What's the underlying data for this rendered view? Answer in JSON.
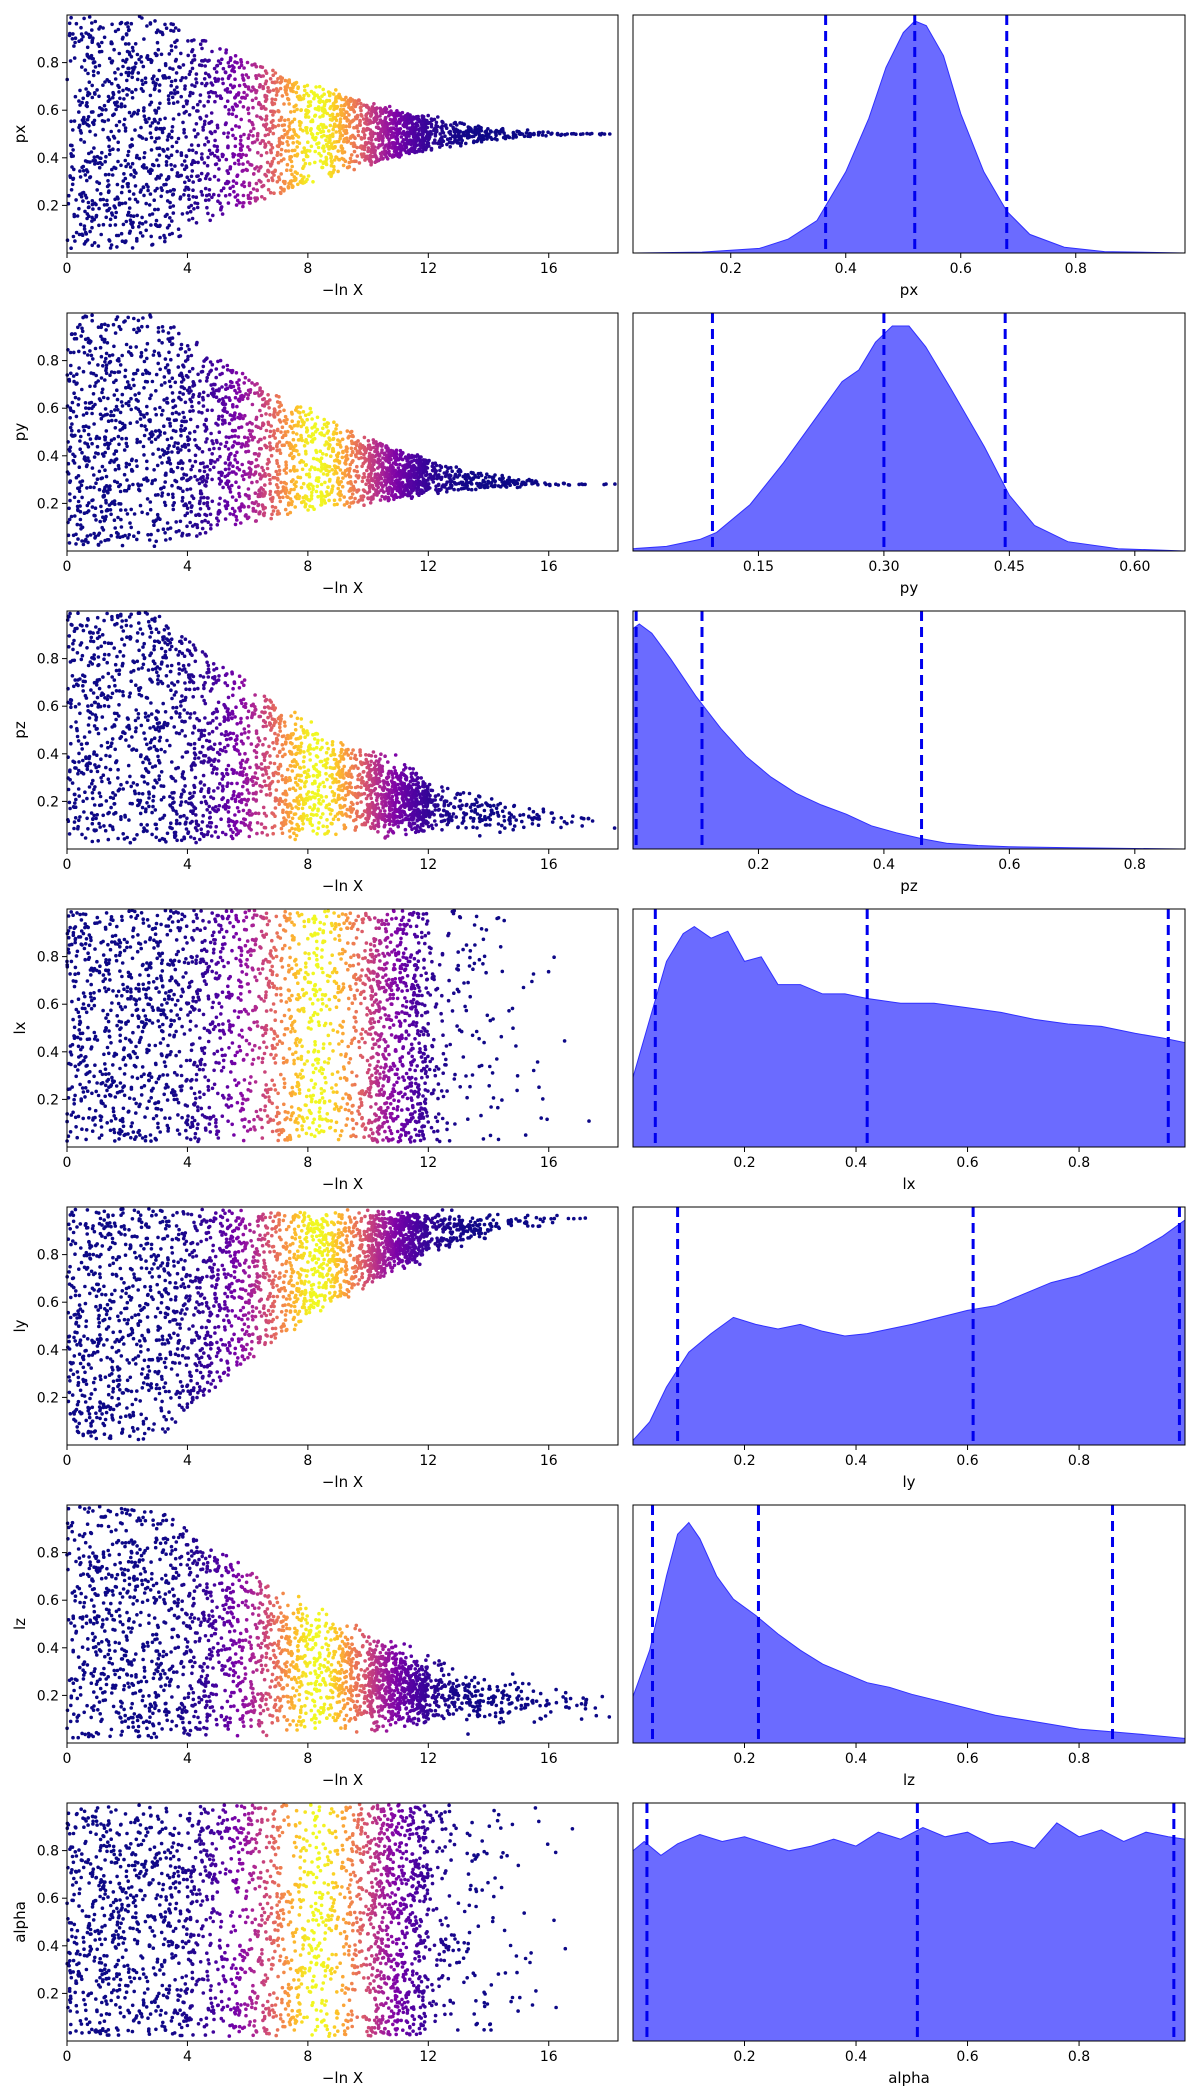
{
  "chart_data": {
    "type": "scatter",
    "layout": "7 rows x 2 columns: left = trace scatter vs -ln X, right = posterior density with dashed quantile lines",
    "rows": [
      {
        "param": "px",
        "trace": {
          "xlabel": "−ln X",
          "ylabel": "px",
          "xlim": [
            0,
            18.3
          ],
          "ylim": [
            0,
            1
          ],
          "xticks": [
            "0",
            "4",
            "8",
            "12",
            "16"
          ],
          "yticks": [
            "0.2",
            "0.4",
            "0.6",
            "0.8"
          ],
          "spread": [
            0.0,
            1.0
          ],
          "converge_to": 0.5,
          "converge_width": 0.05,
          "tail_scale": 2.2
        },
        "posterior": {
          "xlabel": "px",
          "xlim": [
            0.03,
            0.99
          ],
          "xticks": [
            "0.2",
            "0.4",
            "0.6",
            "0.8"
          ],
          "quantiles": [
            0.365,
            0.52,
            0.68
          ],
          "density": [
            [
              0.03,
              0.0
            ],
            [
              0.15,
              0.004
            ],
            [
              0.25,
              0.02
            ],
            [
              0.3,
              0.06
            ],
            [
              0.35,
              0.14
            ],
            [
              0.4,
              0.35
            ],
            [
              0.44,
              0.58
            ],
            [
              0.47,
              0.8
            ],
            [
              0.5,
              0.95
            ],
            [
              0.52,
              1.0
            ],
            [
              0.54,
              0.98
            ],
            [
              0.57,
              0.85
            ],
            [
              0.6,
              0.6
            ],
            [
              0.64,
              0.35
            ],
            [
              0.68,
              0.18
            ],
            [
              0.72,
              0.08
            ],
            [
              0.78,
              0.025
            ],
            [
              0.85,
              0.006
            ],
            [
              0.99,
              0.0
            ]
          ]
        }
      },
      {
        "param": "py",
        "trace": {
          "xlabel": "−ln X",
          "ylabel": "py",
          "xlim": [
            0,
            18.3
          ],
          "ylim": [
            0,
            1
          ],
          "xticks": [
            "0",
            "4",
            "8",
            "12",
            "16"
          ],
          "yticks": [
            "0.2",
            "0.4",
            "0.6",
            "0.8"
          ],
          "spread": [
            0.0,
            1.0
          ],
          "converge_to": 0.28,
          "converge_width": 0.06,
          "tail_scale": 2.0
        },
        "posterior": {
          "xlabel": "py",
          "xlim": [
            0.0,
            0.66
          ],
          "xticks": [
            "0.15",
            "0.30",
            "0.45",
            "0.60"
          ],
          "tick_values": [
            0.15,
            0.3,
            0.45,
            0.6
          ],
          "quantiles": [
            0.095,
            0.3,
            0.445
          ],
          "density": [
            [
              0.0,
              0.01
            ],
            [
              0.04,
              0.02
            ],
            [
              0.08,
              0.05
            ],
            [
              0.1,
              0.08
            ],
            [
              0.14,
              0.2
            ],
            [
              0.18,
              0.38
            ],
            [
              0.22,
              0.58
            ],
            [
              0.25,
              0.73
            ],
            [
              0.27,
              0.78
            ],
            [
              0.29,
              0.9
            ],
            [
              0.31,
              0.97
            ],
            [
              0.33,
              0.97
            ],
            [
              0.35,
              0.88
            ],
            [
              0.38,
              0.7
            ],
            [
              0.42,
              0.45
            ],
            [
              0.45,
              0.24
            ],
            [
              0.48,
              0.11
            ],
            [
              0.52,
              0.04
            ],
            [
              0.58,
              0.01
            ],
            [
              0.66,
              0.0
            ]
          ]
        }
      },
      {
        "param": "pz",
        "trace": {
          "xlabel": "−ln X",
          "ylabel": "pz",
          "xlim": [
            0,
            18.3
          ],
          "ylim": [
            0,
            1
          ],
          "xticks": [
            "0",
            "4",
            "8",
            "12",
            "16"
          ],
          "yticks": [
            "0.2",
            "0.4",
            "0.6",
            "0.8"
          ],
          "spread": [
            0.0,
            1.0
          ],
          "converge_to": 0.12,
          "converge_width": 0.18,
          "tail_scale": 1.8
        },
        "posterior": {
          "xlabel": "pz",
          "xlim": [
            0.0,
            0.88
          ],
          "xticks": [
            "0.2",
            "0.4",
            "0.6",
            "0.8"
          ],
          "quantiles": [
            0.005,
            0.11,
            0.46
          ],
          "density": [
            [
              0.0,
              0.95
            ],
            [
              0.01,
              0.97
            ],
            [
              0.03,
              0.93
            ],
            [
              0.06,
              0.82
            ],
            [
              0.1,
              0.66
            ],
            [
              0.14,
              0.52
            ],
            [
              0.18,
              0.4
            ],
            [
              0.22,
              0.31
            ],
            [
              0.26,
              0.24
            ],
            [
              0.3,
              0.19
            ],
            [
              0.34,
              0.15
            ],
            [
              0.38,
              0.1
            ],
            [
              0.42,
              0.07
            ],
            [
              0.46,
              0.045
            ],
            [
              0.5,
              0.025
            ],
            [
              0.55,
              0.015
            ],
            [
              0.6,
              0.01
            ],
            [
              0.7,
              0.005
            ],
            [
              0.88,
              0.0
            ]
          ]
        }
      },
      {
        "param": "lx",
        "trace": {
          "xlabel": "−ln X",
          "ylabel": "lx",
          "xlim": [
            0,
            18.3
          ],
          "ylim": [
            0,
            1
          ],
          "xticks": [
            "0",
            "4",
            "8",
            "12",
            "16"
          ],
          "yticks": [
            "0.2",
            "0.4",
            "0.6",
            "0.8"
          ],
          "spread": [
            0.0,
            1.0
          ],
          "converge_to": null,
          "converge_width": 1,
          "tail_scale": 1.5
        },
        "posterior": {
          "xlabel": "lx",
          "xlim": [
            0.0,
            0.99
          ],
          "xticks": [
            "0.2",
            "0.4",
            "0.6",
            "0.8"
          ],
          "quantiles": [
            0.04,
            0.42,
            0.96
          ],
          "density": [
            [
              0.0,
              0.3
            ],
            [
              0.03,
              0.55
            ],
            [
              0.06,
              0.8
            ],
            [
              0.09,
              0.92
            ],
            [
              0.11,
              0.95
            ],
            [
              0.14,
              0.9
            ],
            [
              0.17,
              0.93
            ],
            [
              0.2,
              0.8
            ],
            [
              0.23,
              0.82
            ],
            [
              0.26,
              0.7
            ],
            [
              0.3,
              0.7
            ],
            [
              0.34,
              0.66
            ],
            [
              0.38,
              0.66
            ],
            [
              0.42,
              0.64
            ],
            [
              0.48,
              0.62
            ],
            [
              0.54,
              0.62
            ],
            [
              0.6,
              0.6
            ],
            [
              0.66,
              0.58
            ],
            [
              0.72,
              0.55
            ],
            [
              0.78,
              0.53
            ],
            [
              0.84,
              0.52
            ],
            [
              0.9,
              0.49
            ],
            [
              0.95,
              0.47
            ],
            [
              0.99,
              0.45
            ]
          ]
        }
      },
      {
        "param": "ly",
        "trace": {
          "xlabel": "−ln X",
          "ylabel": "ly",
          "xlim": [
            0,
            18.3
          ],
          "ylim": [
            0,
            1
          ],
          "xticks": [
            "0",
            "4",
            "8",
            "12",
            "16"
          ],
          "yticks": [
            "0.2",
            "0.4",
            "0.6",
            "0.8"
          ],
          "spread": [
            0.0,
            1.0
          ],
          "converge_to": 0.95,
          "converge_width": 0.12,
          "tail_scale": 1.6
        },
        "posterior": {
          "xlabel": "ly",
          "xlim": [
            0.0,
            0.99
          ],
          "xticks": [
            "0.2",
            "0.4",
            "0.6",
            "0.8"
          ],
          "quantiles": [
            0.08,
            0.61,
            0.98
          ],
          "density": [
            [
              0.0,
              0.02
            ],
            [
              0.03,
              0.1
            ],
            [
              0.06,
              0.25
            ],
            [
              0.1,
              0.4
            ],
            [
              0.14,
              0.48
            ],
            [
              0.18,
              0.55
            ],
            [
              0.22,
              0.52
            ],
            [
              0.26,
              0.5
            ],
            [
              0.3,
              0.52
            ],
            [
              0.34,
              0.49
            ],
            [
              0.38,
              0.47
            ],
            [
              0.42,
              0.48
            ],
            [
              0.46,
              0.5
            ],
            [
              0.5,
              0.52
            ],
            [
              0.55,
              0.55
            ],
            [
              0.6,
              0.58
            ],
            [
              0.65,
              0.6
            ],
            [
              0.7,
              0.65
            ],
            [
              0.75,
              0.7
            ],
            [
              0.8,
              0.73
            ],
            [
              0.85,
              0.78
            ],
            [
              0.9,
              0.83
            ],
            [
              0.95,
              0.9
            ],
            [
              0.99,
              0.97
            ]
          ]
        }
      },
      {
        "param": "lz",
        "trace": {
          "xlabel": "−ln X",
          "ylabel": "lz",
          "xlim": [
            0,
            18.3
          ],
          "ylim": [
            0,
            1
          ],
          "xticks": [
            "0",
            "4",
            "8",
            "12",
            "16"
          ],
          "yticks": [
            "0.2",
            "0.4",
            "0.6",
            "0.8"
          ],
          "spread": [
            0.0,
            1.0
          ],
          "converge_to": 0.15,
          "converge_width": 0.25,
          "tail_scale": 1.9
        },
        "posterior": {
          "xlabel": "lz",
          "xlim": [
            0.0,
            0.99
          ],
          "xticks": [
            "0.2",
            "0.4",
            "0.6",
            "0.8"
          ],
          "quantiles": [
            0.035,
            0.225,
            0.86
          ],
          "density": [
            [
              0.0,
              0.2
            ],
            [
              0.03,
              0.4
            ],
            [
              0.06,
              0.72
            ],
            [
              0.08,
              0.9
            ],
            [
              0.1,
              0.95
            ],
            [
              0.12,
              0.88
            ],
            [
              0.15,
              0.72
            ],
            [
              0.18,
              0.62
            ],
            [
              0.22,
              0.55
            ],
            [
              0.26,
              0.47
            ],
            [
              0.3,
              0.4
            ],
            [
              0.34,
              0.34
            ],
            [
              0.38,
              0.3
            ],
            [
              0.42,
              0.26
            ],
            [
              0.46,
              0.24
            ],
            [
              0.5,
              0.21
            ],
            [
              0.55,
              0.18
            ],
            [
              0.6,
              0.15
            ],
            [
              0.65,
              0.12
            ],
            [
              0.7,
              0.1
            ],
            [
              0.75,
              0.08
            ],
            [
              0.8,
              0.06
            ],
            [
              0.85,
              0.05
            ],
            [
              0.9,
              0.04
            ],
            [
              0.99,
              0.02
            ]
          ]
        }
      },
      {
        "param": "alpha",
        "trace": {
          "xlabel": "−ln X",
          "ylabel": "alpha",
          "xlim": [
            0,
            18.3
          ],
          "ylim": [
            0,
            1
          ],
          "xticks": [
            "0",
            "4",
            "8",
            "12",
            "16"
          ],
          "yticks": [
            "0.2",
            "0.4",
            "0.6",
            "0.8"
          ],
          "spread": [
            0.0,
            1.0
          ],
          "converge_to": null,
          "converge_width": 1,
          "tail_scale": 1.4
        },
        "posterior": {
          "xlabel": "alpha",
          "xlim": [
            0.0,
            0.99
          ],
          "xticks": [
            "0.2",
            "0.4",
            "0.6",
            "0.8"
          ],
          "quantiles": [
            0.025,
            0.51,
            0.97
          ],
          "density": [
            [
              0.0,
              0.82
            ],
            [
              0.02,
              0.86
            ],
            [
              0.05,
              0.8
            ],
            [
              0.08,
              0.85
            ],
            [
              0.12,
              0.89
            ],
            [
              0.16,
              0.86
            ],
            [
              0.2,
              0.88
            ],
            [
              0.24,
              0.85
            ],
            [
              0.28,
              0.82
            ],
            [
              0.32,
              0.84
            ],
            [
              0.36,
              0.87
            ],
            [
              0.4,
              0.84
            ],
            [
              0.44,
              0.9
            ],
            [
              0.48,
              0.87
            ],
            [
              0.52,
              0.92
            ],
            [
              0.56,
              0.88
            ],
            [
              0.6,
              0.9
            ],
            [
              0.64,
              0.85
            ],
            [
              0.68,
              0.86
            ],
            [
              0.72,
              0.83
            ],
            [
              0.76,
              0.94
            ],
            [
              0.8,
              0.88
            ],
            [
              0.84,
              0.91
            ],
            [
              0.88,
              0.86
            ],
            [
              0.92,
              0.9
            ],
            [
              0.96,
              0.88
            ],
            [
              0.99,
              0.87
            ]
          ]
        }
      }
    ]
  }
}
